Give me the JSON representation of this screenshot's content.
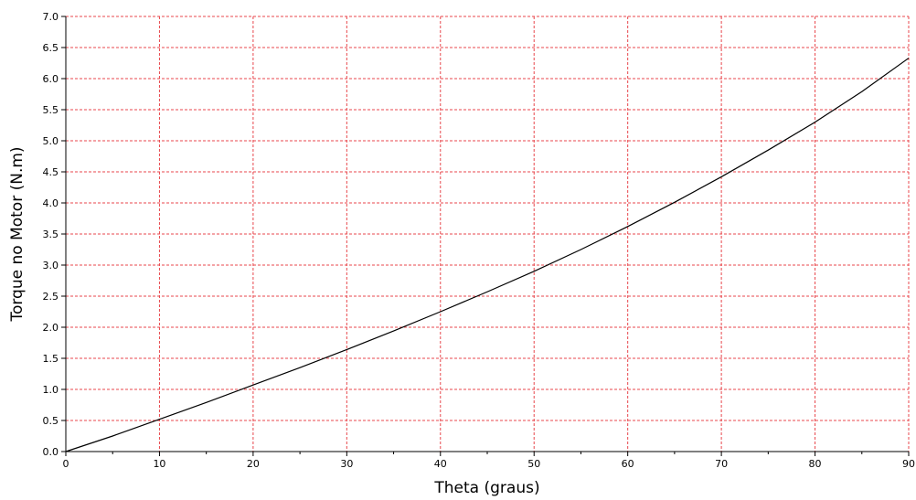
{
  "chart_data": {
    "type": "line",
    "title": "",
    "xlabel": "Theta (graus)",
    "ylabel": "Torque no Motor (N.m)",
    "xlim": [
      0,
      90
    ],
    "ylim": [
      0.0,
      7.0
    ],
    "grid": true,
    "legend": "none",
    "x_ticks": [
      "0",
      "10",
      "20",
      "30",
      "40",
      "50",
      "60",
      "70",
      "80",
      "90"
    ],
    "y_ticks": [
      "0.0",
      "0.5",
      "1.0",
      "1.5",
      "2.0",
      "2.5",
      "3.0",
      "3.5",
      "4.0",
      "4.5",
      "5.0",
      "5.5",
      "6.0",
      "6.5",
      "7.0"
    ],
    "series": [
      {
        "x": [
          0,
          5,
          10,
          15,
          20,
          25,
          30,
          35,
          40,
          45,
          50,
          55,
          60,
          65,
          70,
          75,
          80,
          85,
          90
        ],
        "values": [
          0.0,
          0.25,
          0.52,
          0.79,
          1.07,
          1.35,
          1.64,
          1.94,
          2.25,
          2.57,
          2.9,
          3.25,
          3.62,
          4.01,
          4.42,
          4.85,
          5.3,
          5.79,
          6.33
        ]
      }
    ],
    "colors": {
      "line": "#000000",
      "grid": "#e8474c",
      "axis": "#000000",
      "background": "#ffffff"
    }
  }
}
